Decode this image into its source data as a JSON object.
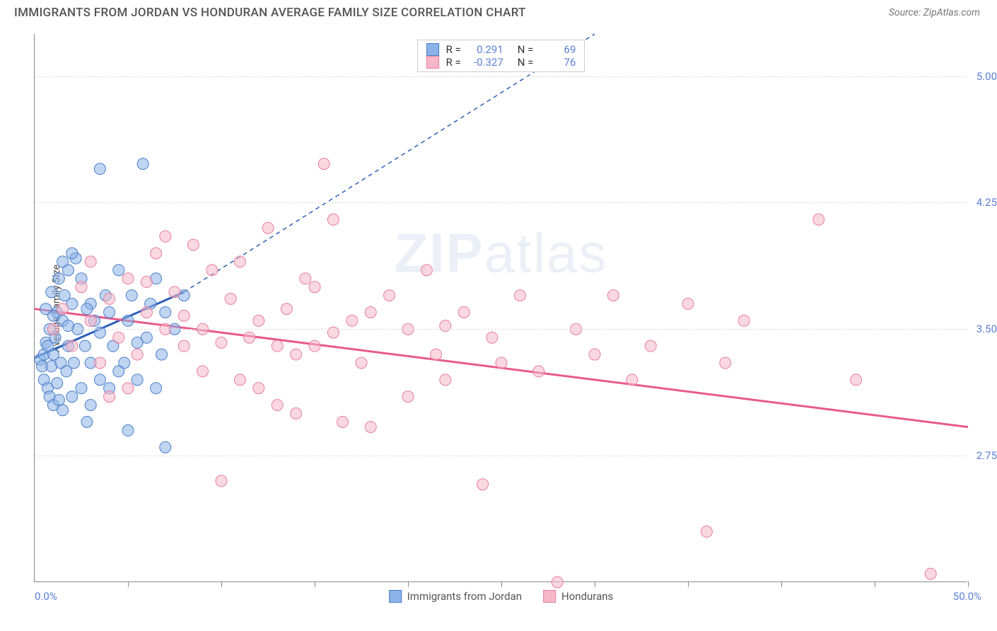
{
  "header": {
    "title": "IMMIGRANTS FROM JORDAN VS HONDURAN AVERAGE FAMILY SIZE CORRELATION CHART",
    "source_label": "Source: ZipAtlas.com"
  },
  "watermark_text_a": "ZIP",
  "watermark_text_b": "atlas",
  "chart": {
    "type": "scatter",
    "background_color": "#ffffff",
    "grid_color": "#dddddd",
    "axis_color": "#888888",
    "ylabel": "Average Family Size",
    "ylabel_fontsize": 14,
    "xlim": [
      0.0,
      50.0
    ],
    "ylim": [
      2.0,
      5.25
    ],
    "yticks": [
      2.75,
      3.5,
      4.25,
      5.0
    ],
    "ytick_labels": [
      "2.75",
      "3.50",
      "4.25",
      "5.00"
    ],
    "ytick_color": "#5b7fd6",
    "xtick_positions": [
      5,
      10,
      15,
      20,
      25,
      30,
      35,
      40,
      45,
      50
    ],
    "x_min_label": "0.0%",
    "x_max_label": "50.0%",
    "marker_radius": 8,
    "marker_opacity": 0.55,
    "series": [
      {
        "name": "Immigrants from Jordan",
        "color": "#8bb3e8",
        "stroke": "#4a7ec9",
        "r_value": "0.291",
        "n_value": "69",
        "trend_solid": {
          "x1": 0.0,
          "y1": 3.33,
          "x2": 8.0,
          "y2": 3.72,
          "color": "#2d5fb8",
          "width": 3
        },
        "trend_dashed": {
          "x1": 8.0,
          "y1": 3.72,
          "x2": 30.0,
          "y2": 5.25,
          "color": "#2d5fb8",
          "width": 1.5,
          "dash": "6,5"
        },
        "points": [
          [
            0.3,
            3.32
          ],
          [
            0.4,
            3.28
          ],
          [
            0.5,
            3.35
          ],
          [
            0.5,
            3.2
          ],
          [
            0.6,
            3.42
          ],
          [
            0.7,
            3.15
          ],
          [
            0.7,
            3.4
          ],
          [
            0.8,
            3.5
          ],
          [
            0.8,
            3.1
          ],
          [
            0.9,
            3.28
          ],
          [
            1.0,
            3.35
          ],
          [
            1.0,
            3.05
          ],
          [
            1.1,
            3.45
          ],
          [
            1.2,
            3.6
          ],
          [
            1.2,
            3.18
          ],
          [
            1.3,
            3.8
          ],
          [
            1.4,
            3.3
          ],
          [
            1.5,
            3.55
          ],
          [
            1.5,
            3.02
          ],
          [
            1.6,
            3.7
          ],
          [
            1.7,
            3.25
          ],
          [
            1.8,
            3.85
          ],
          [
            1.8,
            3.4
          ],
          [
            2.0,
            3.1
          ],
          [
            2.0,
            3.65
          ],
          [
            2.1,
            3.3
          ],
          [
            2.2,
            3.92
          ],
          [
            2.3,
            3.5
          ],
          [
            2.5,
            3.15
          ],
          [
            2.5,
            3.8
          ],
          [
            2.7,
            3.4
          ],
          [
            2.8,
            2.95
          ],
          [
            3.0,
            3.65
          ],
          [
            3.0,
            3.3
          ],
          [
            3.2,
            3.55
          ],
          [
            3.5,
            3.2
          ],
          [
            3.5,
            4.45
          ],
          [
            3.8,
            3.7
          ],
          [
            4.0,
            3.15
          ],
          [
            4.0,
            3.6
          ],
          [
            4.2,
            3.4
          ],
          [
            4.5,
            3.85
          ],
          [
            4.8,
            3.3
          ],
          [
            5.0,
            3.55
          ],
          [
            5.0,
            2.9
          ],
          [
            5.2,
            3.7
          ],
          [
            5.5,
            3.2
          ],
          [
            5.8,
            4.48
          ],
          [
            6.0,
            3.45
          ],
          [
            6.2,
            3.65
          ],
          [
            6.5,
            3.8
          ],
          [
            6.8,
            3.35
          ],
          [
            7.0,
            3.6
          ],
          [
            7.0,
            2.8
          ],
          [
            7.5,
            3.5
          ],
          [
            8.0,
            3.7
          ],
          [
            1.5,
            3.9
          ],
          [
            2.0,
            3.95
          ],
          [
            2.8,
            3.62
          ],
          [
            3.5,
            3.48
          ],
          [
            1.0,
            3.58
          ],
          [
            0.6,
            3.62
          ],
          [
            0.9,
            3.72
          ],
          [
            1.3,
            3.08
          ],
          [
            1.8,
            3.52
          ],
          [
            4.5,
            3.25
          ],
          [
            5.5,
            3.42
          ],
          [
            6.5,
            3.15
          ],
          [
            3.0,
            3.05
          ]
        ]
      },
      {
        "name": "Hondurans",
        "color": "#f5b8c8",
        "stroke": "#e87d9f",
        "r_value": "-0.327",
        "n_value": "76",
        "trend_solid": {
          "x1": 0.0,
          "y1": 3.62,
          "x2": 50.0,
          "y2": 2.92,
          "color": "#e85a8c",
          "width": 3
        },
        "points": [
          [
            1.0,
            3.5
          ],
          [
            1.5,
            3.62
          ],
          [
            2.0,
            3.4
          ],
          [
            2.5,
            3.75
          ],
          [
            3.0,
            3.55
          ],
          [
            3.5,
            3.3
          ],
          [
            4.0,
            3.68
          ],
          [
            4.5,
            3.45
          ],
          [
            5.0,
            3.8
          ],
          [
            5.5,
            3.35
          ],
          [
            6.0,
            3.6
          ],
          [
            6.5,
            3.95
          ],
          [
            7.0,
            3.5
          ],
          [
            7.5,
            3.72
          ],
          [
            8.0,
            3.4
          ],
          [
            8.5,
            4.0
          ],
          [
            9.0,
            3.25
          ],
          [
            9.5,
            3.85
          ],
          [
            10.0,
            2.6
          ],
          [
            10.5,
            3.68
          ],
          [
            11.0,
            3.9
          ],
          [
            11.5,
            3.45
          ],
          [
            12.0,
            3.15
          ],
          [
            12.5,
            4.1
          ],
          [
            13.0,
            3.05
          ],
          [
            13.5,
            3.62
          ],
          [
            14.0,
            3.0
          ],
          [
            14.5,
            3.8
          ],
          [
            15.0,
            3.4
          ],
          [
            15.5,
            4.48
          ],
          [
            16.0,
            4.15
          ],
          [
            16.5,
            2.95
          ],
          [
            17.0,
            3.55
          ],
          [
            17.5,
            3.3
          ],
          [
            18.0,
            2.92
          ],
          [
            19.0,
            3.7
          ],
          [
            20.0,
            3.5
          ],
          [
            21.0,
            3.85
          ],
          [
            21.5,
            3.35
          ],
          [
            22.0,
            3.2
          ],
          [
            23.0,
            3.6
          ],
          [
            24.0,
            2.58
          ],
          [
            24.5,
            3.45
          ],
          [
            25.0,
            3.3
          ],
          [
            26.0,
            3.7
          ],
          [
            27.0,
            3.25
          ],
          [
            28.0,
            2.0
          ],
          [
            29.0,
            3.5
          ],
          [
            30.0,
            3.35
          ],
          [
            31.0,
            3.7
          ],
          [
            32.0,
            3.2
          ],
          [
            33.0,
            3.4
          ],
          [
            35.0,
            3.65
          ],
          [
            36.0,
            2.3
          ],
          [
            37.0,
            3.3
          ],
          [
            38.0,
            3.55
          ],
          [
            42.0,
            4.15
          ],
          [
            44.0,
            3.2
          ],
          [
            48.0,
            2.05
          ],
          [
            3.0,
            3.9
          ],
          [
            5.0,
            3.15
          ],
          [
            7.0,
            4.05
          ],
          [
            9.0,
            3.5
          ],
          [
            11.0,
            3.2
          ],
          [
            13.0,
            3.4
          ],
          [
            15.0,
            3.75
          ],
          [
            4.0,
            3.1
          ],
          [
            6.0,
            3.78
          ],
          [
            8.0,
            3.58
          ],
          [
            10.0,
            3.42
          ],
          [
            12.0,
            3.55
          ],
          [
            14.0,
            3.35
          ],
          [
            16.0,
            3.48
          ],
          [
            18.0,
            3.6
          ],
          [
            20.0,
            3.1
          ],
          [
            22.0,
            3.52
          ]
        ]
      }
    ]
  },
  "legend": {
    "r_prefix": "R =",
    "n_prefix": "N ="
  }
}
